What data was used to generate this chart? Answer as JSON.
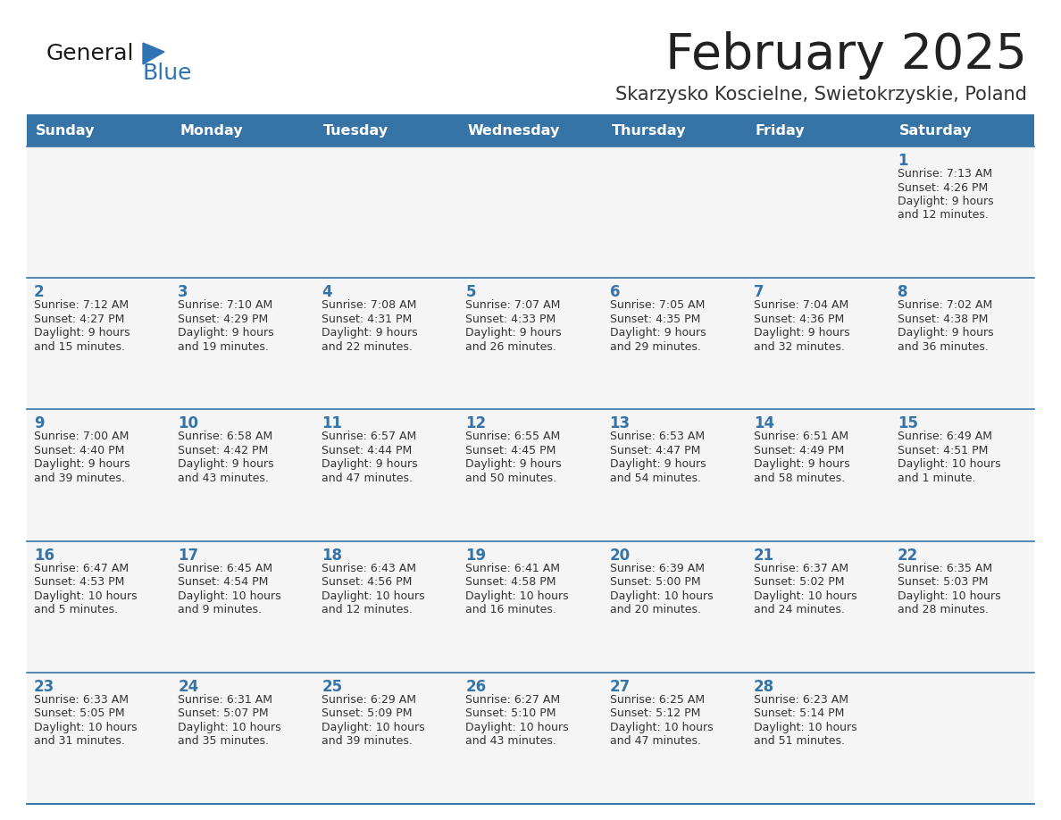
{
  "title": "February 2025",
  "subtitle": "Skarzysko Koscielne, Swietokrzyskie, Poland",
  "header_color": "#3674A8",
  "header_text_color": "#FFFFFF",
  "cell_bg_color": "#F5F5F5",
  "week_sep_color": "#3674A8",
  "day_text_color": "#3674A8",
  "info_text_color": "#333333",
  "days_of_week": [
    "Sunday",
    "Monday",
    "Tuesday",
    "Wednesday",
    "Thursday",
    "Friday",
    "Saturday"
  ],
  "logo_general_color": "#1a1a1a",
  "logo_blue_color": "#2E74B5",
  "weeks": [
    [
      {
        "day": null,
        "sunrise": null,
        "sunset": null,
        "daylight": null
      },
      {
        "day": null,
        "sunrise": null,
        "sunset": null,
        "daylight": null
      },
      {
        "day": null,
        "sunrise": null,
        "sunset": null,
        "daylight": null
      },
      {
        "day": null,
        "sunrise": null,
        "sunset": null,
        "daylight": null
      },
      {
        "day": null,
        "sunrise": null,
        "sunset": null,
        "daylight": null
      },
      {
        "day": null,
        "sunrise": null,
        "sunset": null,
        "daylight": null
      },
      {
        "day": 1,
        "sunrise": "7:13 AM",
        "sunset": "4:26 PM",
        "daylight": "9 hours\nand 12 minutes."
      }
    ],
    [
      {
        "day": 2,
        "sunrise": "7:12 AM",
        "sunset": "4:27 PM",
        "daylight": "9 hours\nand 15 minutes."
      },
      {
        "day": 3,
        "sunrise": "7:10 AM",
        "sunset": "4:29 PM",
        "daylight": "9 hours\nand 19 minutes."
      },
      {
        "day": 4,
        "sunrise": "7:08 AM",
        "sunset": "4:31 PM",
        "daylight": "9 hours\nand 22 minutes."
      },
      {
        "day": 5,
        "sunrise": "7:07 AM",
        "sunset": "4:33 PM",
        "daylight": "9 hours\nand 26 minutes."
      },
      {
        "day": 6,
        "sunrise": "7:05 AM",
        "sunset": "4:35 PM",
        "daylight": "9 hours\nand 29 minutes."
      },
      {
        "day": 7,
        "sunrise": "7:04 AM",
        "sunset": "4:36 PM",
        "daylight": "9 hours\nand 32 minutes."
      },
      {
        "day": 8,
        "sunrise": "7:02 AM",
        "sunset": "4:38 PM",
        "daylight": "9 hours\nand 36 minutes."
      }
    ],
    [
      {
        "day": 9,
        "sunrise": "7:00 AM",
        "sunset": "4:40 PM",
        "daylight": "9 hours\nand 39 minutes."
      },
      {
        "day": 10,
        "sunrise": "6:58 AM",
        "sunset": "4:42 PM",
        "daylight": "9 hours\nand 43 minutes."
      },
      {
        "day": 11,
        "sunrise": "6:57 AM",
        "sunset": "4:44 PM",
        "daylight": "9 hours\nand 47 minutes."
      },
      {
        "day": 12,
        "sunrise": "6:55 AM",
        "sunset": "4:45 PM",
        "daylight": "9 hours\nand 50 minutes."
      },
      {
        "day": 13,
        "sunrise": "6:53 AM",
        "sunset": "4:47 PM",
        "daylight": "9 hours\nand 54 minutes."
      },
      {
        "day": 14,
        "sunrise": "6:51 AM",
        "sunset": "4:49 PM",
        "daylight": "9 hours\nand 58 minutes."
      },
      {
        "day": 15,
        "sunrise": "6:49 AM",
        "sunset": "4:51 PM",
        "daylight": "10 hours\nand 1 minute."
      }
    ],
    [
      {
        "day": 16,
        "sunrise": "6:47 AM",
        "sunset": "4:53 PM",
        "daylight": "10 hours\nand 5 minutes."
      },
      {
        "day": 17,
        "sunrise": "6:45 AM",
        "sunset": "4:54 PM",
        "daylight": "10 hours\nand 9 minutes."
      },
      {
        "day": 18,
        "sunrise": "6:43 AM",
        "sunset": "4:56 PM",
        "daylight": "10 hours\nand 12 minutes."
      },
      {
        "day": 19,
        "sunrise": "6:41 AM",
        "sunset": "4:58 PM",
        "daylight": "10 hours\nand 16 minutes."
      },
      {
        "day": 20,
        "sunrise": "6:39 AM",
        "sunset": "5:00 PM",
        "daylight": "10 hours\nand 20 minutes."
      },
      {
        "day": 21,
        "sunrise": "6:37 AM",
        "sunset": "5:02 PM",
        "daylight": "10 hours\nand 24 minutes."
      },
      {
        "day": 22,
        "sunrise": "6:35 AM",
        "sunset": "5:03 PM",
        "daylight": "10 hours\nand 28 minutes."
      }
    ],
    [
      {
        "day": 23,
        "sunrise": "6:33 AM",
        "sunset": "5:05 PM",
        "daylight": "10 hours\nand 31 minutes."
      },
      {
        "day": 24,
        "sunrise": "6:31 AM",
        "sunset": "5:07 PM",
        "daylight": "10 hours\nand 35 minutes."
      },
      {
        "day": 25,
        "sunrise": "6:29 AM",
        "sunset": "5:09 PM",
        "daylight": "10 hours\nand 39 minutes."
      },
      {
        "day": 26,
        "sunrise": "6:27 AM",
        "sunset": "5:10 PM",
        "daylight": "10 hours\nand 43 minutes."
      },
      {
        "day": 27,
        "sunrise": "6:25 AM",
        "sunset": "5:12 PM",
        "daylight": "10 hours\nand 47 minutes."
      },
      {
        "day": 28,
        "sunrise": "6:23 AM",
        "sunset": "5:14 PM",
        "daylight": "10 hours\nand 51 minutes."
      },
      {
        "day": null,
        "sunrise": null,
        "sunset": null,
        "daylight": null
      }
    ]
  ]
}
